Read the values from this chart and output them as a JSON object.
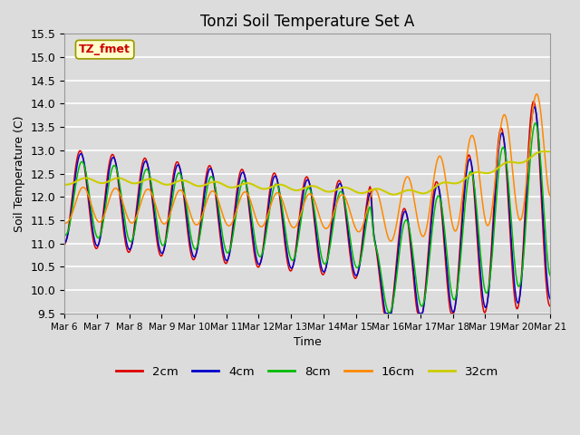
{
  "title": "Tonzi Soil Temperature Set A",
  "xlabel": "Time",
  "ylabel": "Soil Temperature (C)",
  "ylim": [
    9.5,
    15.5
  ],
  "annotation": "TZ_fmet",
  "annotation_color": "#cc0000",
  "annotation_bg": "#ffffcc",
  "bg_color": "#dcdcdc",
  "plot_bg": "#dcdcdc",
  "grid_color": "white",
  "line_colors": {
    "2cm": "#dd0000",
    "4cm": "#0000cc",
    "8cm": "#00bb00",
    "16cm": "#ff8800",
    "32cm": "#cccc00"
  },
  "xtick_labels": [
    "Mar 6",
    "Mar 7",
    "Mar 8",
    "Mar 9",
    "Mar 10",
    "Mar 11",
    "Mar 12",
    "Mar 13",
    "Mar 14",
    "Mar 15",
    "Mar 16",
    "Mar 17",
    "Mar 18",
    "Mar 19",
    "Mar 20",
    "Mar 21"
  ],
  "legend_labels": [
    "2cm",
    "4cm",
    "8cm",
    "16cm",
    "32cm"
  ]
}
